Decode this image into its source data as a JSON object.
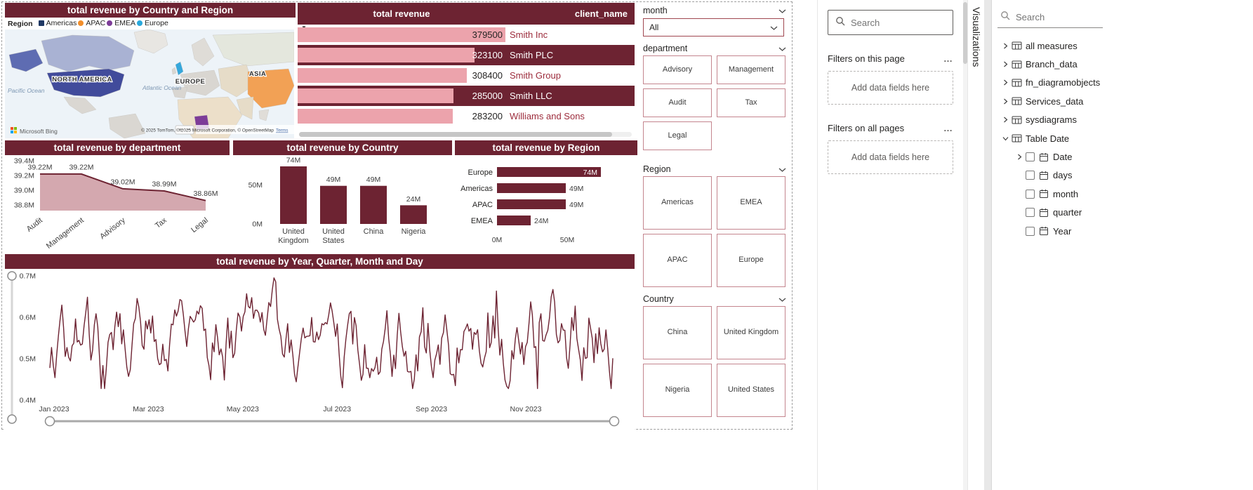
{
  "colors": {
    "maroon": "#6D2332",
    "bar_pink": "#ECA3AC",
    "area_fill": "#D4A8AF"
  },
  "map": {
    "title": "total revenue by Country and Region",
    "legend_title": "Region",
    "legend": [
      {
        "label": "Americas",
        "color": "#1F3864",
        "shape": "square"
      },
      {
        "label": "APAC",
        "color": "#F28E2B",
        "shape": "circle"
      },
      {
        "label": "EMEA",
        "color": "#7D3C98",
        "shape": "circle"
      },
      {
        "label": "Europe",
        "color": "#29A8DC",
        "shape": "circle"
      }
    ],
    "labels": {
      "north_america": "NORTH AMERICA",
      "europe": "EUROPE",
      "asia": "ASIA",
      "pacific": "Pacific Ocean",
      "atlantic": "Atlantic Ocean"
    },
    "bing": "Microsoft Bing",
    "attribution": "© 2025 TomTom, © 2025 Microsoft Corporation, © OpenStreetMap",
    "terms": "Terms"
  },
  "table": {
    "col_revenue": "total revenue",
    "col_client": "client_name",
    "sort_indicator": "▼",
    "rows": [
      {
        "revenue": "379500",
        "client": "Smith Inc",
        "pct": 100,
        "selected": false
      },
      {
        "revenue": "323100",
        "client": "Smith PLC",
        "pct": 85.1,
        "selected": true
      },
      {
        "revenue": "308400",
        "client": "Smith Group",
        "pct": 81.3,
        "selected": false
      },
      {
        "revenue": "285000",
        "client": "Smith LLC",
        "pct": 75.1,
        "selected": true
      },
      {
        "revenue": "283200",
        "client": "Williams and Sons",
        "pct": 74.6,
        "selected": false
      }
    ]
  },
  "chart_data": [
    {
      "type": "area",
      "title": "total revenue by department",
      "categories": [
        "Audit",
        "Management",
        "Advisory",
        "Tax",
        "Legal"
      ],
      "values": [
        39.22,
        39.22,
        39.02,
        38.99,
        38.86
      ],
      "data_labels": [
        "39.22M",
        "39.22M",
        "39.02M",
        "38.99M",
        "38.86M"
      ],
      "y_ticks": [
        "39.4M",
        "39.2M",
        "39.0M",
        "38.8M"
      ],
      "ylim": [
        38.8,
        39.4
      ],
      "unit": "M"
    },
    {
      "type": "bar",
      "title": "total revenue by Country",
      "categories": [
        "United Kingdom",
        "United States",
        "China",
        "Nigeria"
      ],
      "values": [
        74,
        49,
        49,
        24
      ],
      "data_labels": [
        "74M",
        "49M",
        "49M",
        "24M"
      ],
      "y_ticks": [
        {
          "label": "50M",
          "value": 50
        },
        {
          "label": "0M",
          "value": 0
        }
      ],
      "ylim": [
        0,
        80
      ]
    },
    {
      "type": "hbar",
      "title": "total revenue by Region",
      "categories": [
        "Europe",
        "Americas",
        "APAC",
        "EMEA"
      ],
      "values": [
        74,
        49,
        49,
        24
      ],
      "data_labels": [
        "74M",
        "49M",
        "49M",
        "24M"
      ],
      "x_ticks": [
        {
          "label": "0M",
          "value": 0
        },
        {
          "label": "50M",
          "value": 50
        }
      ],
      "xlim": [
        0,
        80
      ]
    },
    {
      "type": "line",
      "title": "total revenue by Year, Quarter, Month and Day",
      "x_ticks": [
        "Jan 2023",
        "Mar 2023",
        "May 2023",
        "Jul 2023",
        "Sep 2023",
        "Nov 2023"
      ],
      "y_ticks": [
        "0.7M",
        "0.6M",
        "0.5M",
        "0.4M"
      ],
      "ylim": [
        0.4,
        0.7
      ],
      "series_note": "daily values oscillating between ~0.43M and ~0.71M across year 2023",
      "seed": 20230,
      "n_points": 330
    }
  ],
  "slicers": {
    "month": {
      "label": "month",
      "selected": "All"
    },
    "department": {
      "label": "department",
      "options": [
        "Advisory",
        "Management",
        "Audit",
        "Tax",
        "Legal"
      ]
    },
    "region": {
      "label": "Region",
      "options": [
        "Americas",
        "EMEA",
        "APAC",
        "Europe"
      ]
    },
    "country": {
      "label": "Country",
      "options": [
        "China",
        "United Kingdom",
        "Nigeria",
        "United States"
      ]
    }
  },
  "filters_pane": {
    "search_placeholder": "Search",
    "more": "…",
    "sections": [
      {
        "title": "Filters on this page",
        "placeholder": "Add data fields here"
      },
      {
        "title": "Filters on all pages",
        "placeholder": "Add data fields here"
      }
    ]
  },
  "viz_pane_label": "Visualizations",
  "fields_pane": {
    "search_placeholder": "Search",
    "items": [
      {
        "label": "all measures",
        "icon": "table",
        "chevron": "collapsed",
        "checkbox": false,
        "level": 0
      },
      {
        "label": "Branch_data",
        "icon": "table",
        "chevron": "collapsed",
        "checkbox": false,
        "level": 0
      },
      {
        "label": "fn_diagramobjects",
        "icon": "table",
        "chevron": "collapsed",
        "checkbox": false,
        "level": 0
      },
      {
        "label": "Services_data",
        "icon": "table",
        "chevron": "collapsed",
        "checkbox": false,
        "level": 0
      },
      {
        "label": "sysdiagrams",
        "icon": "table",
        "chevron": "collapsed",
        "checkbox": false,
        "level": 0
      },
      {
        "label": "Table Date",
        "icon": "table",
        "chevron": "expanded",
        "checkbox": false,
        "level": 0
      },
      {
        "label": "Date",
        "icon": "calendar",
        "chevron": "collapsed",
        "checkbox": true,
        "level": 1
      },
      {
        "label": "days",
        "icon": "calendar",
        "chevron": null,
        "checkbox": true,
        "level": 1
      },
      {
        "label": "month",
        "icon": "calendar",
        "chevron": null,
        "checkbox": true,
        "level": 1
      },
      {
        "label": "quarter",
        "icon": "calendar",
        "chevron": null,
        "checkbox": true,
        "level": 1
      },
      {
        "label": "Year",
        "icon": "calendar",
        "chevron": null,
        "checkbox": true,
        "level": 1
      }
    ]
  }
}
